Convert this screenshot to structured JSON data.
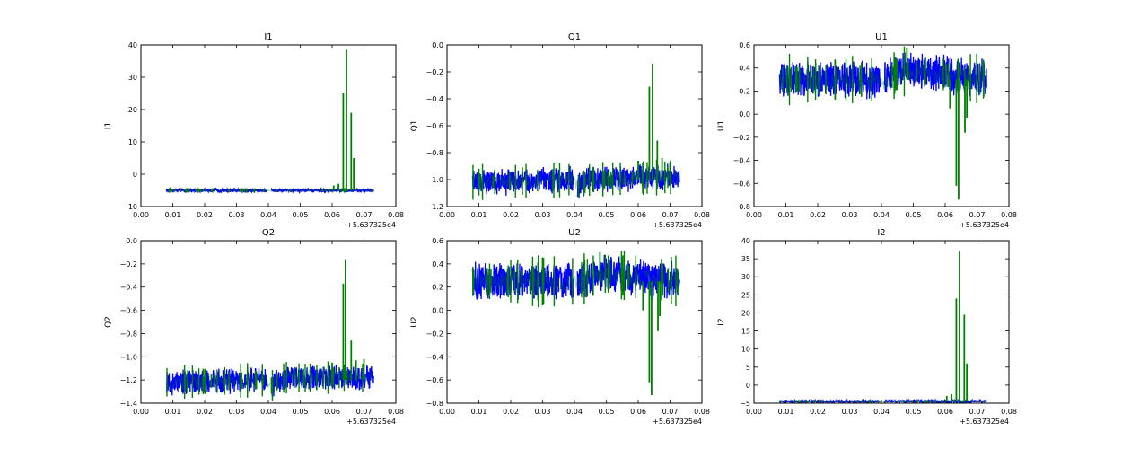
{
  "figure": {
    "offset_text": "+5.637325e4",
    "colors": {
      "series_main": "#0000ff",
      "series_spikes": "#008000",
      "axes": "#000000"
    }
  },
  "chart_data": [
    {
      "type": "line",
      "title": "I1",
      "ylabel": "I1",
      "xlim": [
        0.0,
        0.08
      ],
      "ylim": [
        -10,
        40
      ],
      "xticks": [
        0.0,
        0.01,
        0.02,
        0.03,
        0.04,
        0.05,
        0.06,
        0.07,
        0.08
      ],
      "yticks": [
        -10,
        0,
        10,
        20,
        30,
        40
      ],
      "xtick_labels": [
        "0.00",
        "0.01",
        "0.02",
        "0.03",
        "0.04",
        "0.05",
        "0.06",
        "0.07",
        "0.08"
      ],
      "ytick_labels": [
        "−10",
        "0",
        "10",
        "20",
        "30",
        "40"
      ],
      "series": [
        {
          "color": "#0000ff",
          "x": [
            0.008,
            0.0395,
            0.041,
            0.073
          ],
          "y_center": [
            -5,
            -5,
            -5,
            -5
          ],
          "y_band": 0.5
        },
        {
          "color": "#008000",
          "spikes_x": [
            0.0635,
            0.0645,
            0.066,
            0.0668,
            0.062,
            0.0605
          ],
          "spikes_y": [
            25,
            38.5,
            19,
            5,
            -3,
            -3.5
          ],
          "baseline": -5
        }
      ]
    },
    {
      "type": "line",
      "title": "Q1",
      "ylabel": "Q1",
      "xlim": [
        0.0,
        0.08
      ],
      "ylim": [
        -1.2,
        0.0
      ],
      "xticks": [
        0.0,
        0.01,
        0.02,
        0.03,
        0.04,
        0.05,
        0.06,
        0.07,
        0.08
      ],
      "yticks": [
        -1.2,
        -1.0,
        -0.8,
        -0.6,
        -0.4,
        -0.2,
        0.0
      ],
      "xtick_labels": [
        "0.00",
        "0.01",
        "0.02",
        "0.03",
        "0.04",
        "0.05",
        "0.06",
        "0.07",
        "0.08"
      ],
      "ytick_labels": [
        "−1.2",
        "−1.0",
        "−0.8",
        "−0.6",
        "−0.4",
        "−0.2",
        "0.0"
      ],
      "series": [
        {
          "color": "#0000ff",
          "x": [
            0.008,
            0.0395,
            0.041,
            0.045,
            0.073
          ],
          "y_center": [
            -1.02,
            -1.0,
            -1.05,
            -1.0,
            -0.98
          ],
          "y_band": 0.09
        },
        {
          "color": "#008000",
          "spikes_x": [
            0.0635,
            0.0645,
            0.066,
            0.0675,
            0.06,
            0.07
          ],
          "spikes_y": [
            -0.31,
            -0.14,
            -0.71,
            -0.84,
            -0.86,
            -0.87
          ],
          "baseline": -1.0
        }
      ]
    },
    {
      "type": "line",
      "title": "U1",
      "ylabel": "U1",
      "xlim": [
        0.0,
        0.08
      ],
      "ylim": [
        -0.8,
        0.6
      ],
      "xticks": [
        0.0,
        0.01,
        0.02,
        0.03,
        0.04,
        0.05,
        0.06,
        0.07,
        0.08
      ],
      "yticks": [
        -0.8,
        -0.6,
        -0.4,
        -0.2,
        0.0,
        0.2,
        0.4,
        0.6
      ],
      "xtick_labels": [
        "0.00",
        "0.01",
        "0.02",
        "0.03",
        "0.04",
        "0.05",
        "0.06",
        "0.07",
        "0.08"
      ],
      "ytick_labels": [
        "−0.8",
        "−0.6",
        "−0.4",
        "−0.2",
        "0.0",
        "0.2",
        "0.4",
        "0.6"
      ],
      "series": [
        {
          "color": "#0000ff",
          "x": [
            0.008,
            0.0395,
            0.041,
            0.048,
            0.073
          ],
          "y_center": [
            0.3,
            0.3,
            0.3,
            0.38,
            0.3
          ],
          "y_band": 0.15
        },
        {
          "color": "#008000",
          "spikes_x": [
            0.0635,
            0.0642,
            0.0662,
            0.0668,
            0.0615,
            0.048
          ],
          "spikes_y": [
            -0.62,
            -0.74,
            -0.16,
            -0.03,
            0.05,
            0.57
          ],
          "baseline": 0.3
        }
      ]
    },
    {
      "type": "line",
      "title": "Q2",
      "ylabel": "Q2",
      "xlim": [
        0.0,
        0.08
      ],
      "ylim": [
        -1.4,
        0.0
      ],
      "xticks": [
        0.0,
        0.01,
        0.02,
        0.03,
        0.04,
        0.05,
        0.06,
        0.07,
        0.08
      ],
      "yticks": [
        -1.4,
        -1.2,
        -1.0,
        -0.8,
        -0.6,
        -0.4,
        -0.2,
        0.0
      ],
      "xtick_labels": [
        "0.00",
        "0.01",
        "0.02",
        "0.03",
        "0.04",
        "0.05",
        "0.06",
        "0.07",
        "0.08"
      ],
      "ytick_labels": [
        "−1.4",
        "−1.2",
        "−1.0",
        "−0.8",
        "−0.6",
        "−0.4",
        "−0.2",
        "0.0"
      ],
      "series": [
        {
          "color": "#0000ff",
          "x": [
            0.008,
            0.0395,
            0.041,
            0.045,
            0.073
          ],
          "y_center": [
            -1.22,
            -1.2,
            -1.25,
            -1.18,
            -1.18
          ],
          "y_band": 0.1
        },
        {
          "color": "#008000",
          "spikes_x": [
            0.0635,
            0.0642,
            0.066,
            0.0675,
            0.06,
            0.07
          ],
          "spikes_y": [
            -0.37,
            -0.16,
            -0.86,
            -1.03,
            -1.05,
            -1.02
          ],
          "baseline": -1.2
        }
      ]
    },
    {
      "type": "line",
      "title": "U2",
      "ylabel": "U2",
      "xlim": [
        0.0,
        0.08
      ],
      "ylim": [
        -0.8,
        0.6
      ],
      "xticks": [
        0.0,
        0.01,
        0.02,
        0.03,
        0.04,
        0.05,
        0.06,
        0.07,
        0.08
      ],
      "yticks": [
        -0.8,
        -0.6,
        -0.4,
        -0.2,
        0.0,
        0.2,
        0.4,
        0.6
      ],
      "xtick_labels": [
        "0.00",
        "0.01",
        "0.02",
        "0.03",
        "0.04",
        "0.05",
        "0.06",
        "0.07",
        "0.08"
      ],
      "ytick_labels": [
        "−0.8",
        "−0.6",
        "−0.4",
        "−0.2",
        "0.0",
        "0.2",
        "0.4",
        "0.6"
      ],
      "series": [
        {
          "color": "#0000ff",
          "x": [
            0.008,
            0.0395,
            0.041,
            0.048,
            0.073
          ],
          "y_center": [
            0.25,
            0.25,
            0.25,
            0.32,
            0.25
          ],
          "y_band": 0.15
        },
        {
          "color": "#008000",
          "spikes_x": [
            0.0635,
            0.0642,
            0.0662,
            0.0668,
            0.0615,
            0.048
          ],
          "spikes_y": [
            -0.62,
            -0.73,
            -0.18,
            -0.05,
            0.0,
            0.5
          ],
          "baseline": 0.25
        }
      ]
    },
    {
      "type": "line",
      "title": "I2",
      "ylabel": "I2",
      "xlim": [
        0.0,
        0.08
      ],
      "ylim": [
        -5,
        40
      ],
      "xticks": [
        0.0,
        0.01,
        0.02,
        0.03,
        0.04,
        0.05,
        0.06,
        0.07,
        0.08
      ],
      "yticks": [
        -5,
        0,
        5,
        10,
        15,
        20,
        25,
        30,
        35,
        40
      ],
      "xtick_labels": [
        "0.00",
        "0.01",
        "0.02",
        "0.03",
        "0.04",
        "0.05",
        "0.06",
        "0.07",
        "0.08"
      ],
      "ytick_labels": [
        "−5",
        "0",
        "5",
        "10",
        "15",
        "20",
        "25",
        "30",
        "35",
        "40"
      ],
      "series": [
        {
          "color": "#0000ff",
          "x": [
            0.008,
            0.0395,
            0.041,
            0.073
          ],
          "y_center": [
            -4.5,
            -4.5,
            -4.5,
            -4.5
          ],
          "y_band": 0.3
        },
        {
          "color": "#008000",
          "spikes_x": [
            0.0635,
            0.0645,
            0.066,
            0.0668,
            0.062,
            0.0605
          ],
          "spikes_y": [
            24,
            37,
            19.5,
            6,
            -2.5,
            -3
          ],
          "baseline": -4.5
        }
      ]
    }
  ]
}
